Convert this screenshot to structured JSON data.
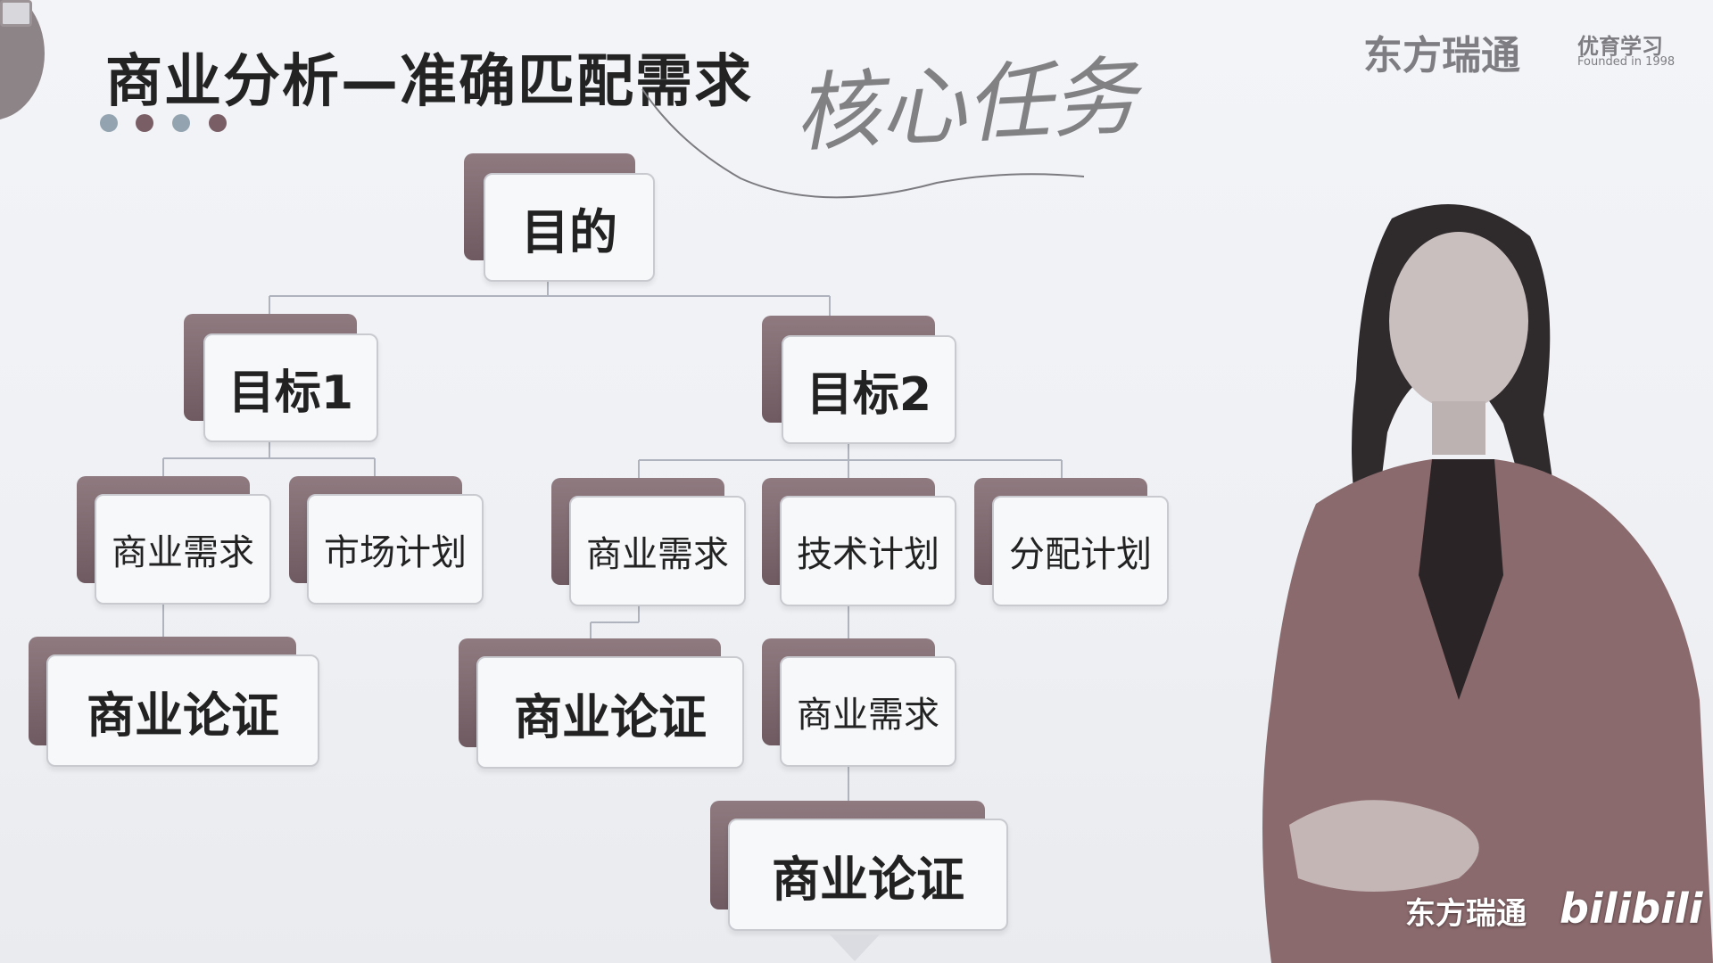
{
  "slide": {
    "title": "商业分析—准确匹配需求",
    "handwritten_note": "核心任务",
    "dot_colors": [
      "#93a4b0",
      "#7a5e66",
      "#93a4b0",
      "#7a5e66"
    ]
  },
  "branding": {
    "company": "东方瑞通",
    "sub_logo": "优育学习",
    "founded": "Founded in 1998",
    "watermark_company": "东方瑞通",
    "watermark_site": "bilibili"
  },
  "diagram": {
    "root": "目的",
    "goal1": "目标1",
    "goal2": "目标2",
    "g1_business_req": "商业需求",
    "g1_market_plan": "市场计划",
    "g1_business_case": "商业论证",
    "g2_business_req": "商业需求",
    "g2_tech_plan": "技术计划",
    "g2_dist_plan": "分配计划",
    "g2_business_case": "商业论证",
    "g2_business_req_2": "商业需求",
    "g2_business_case_2": "商业论证"
  },
  "colors": {
    "accent": "#7a5e66",
    "node_fill": "#f7f8fa",
    "connector": "#aeb3bd"
  }
}
